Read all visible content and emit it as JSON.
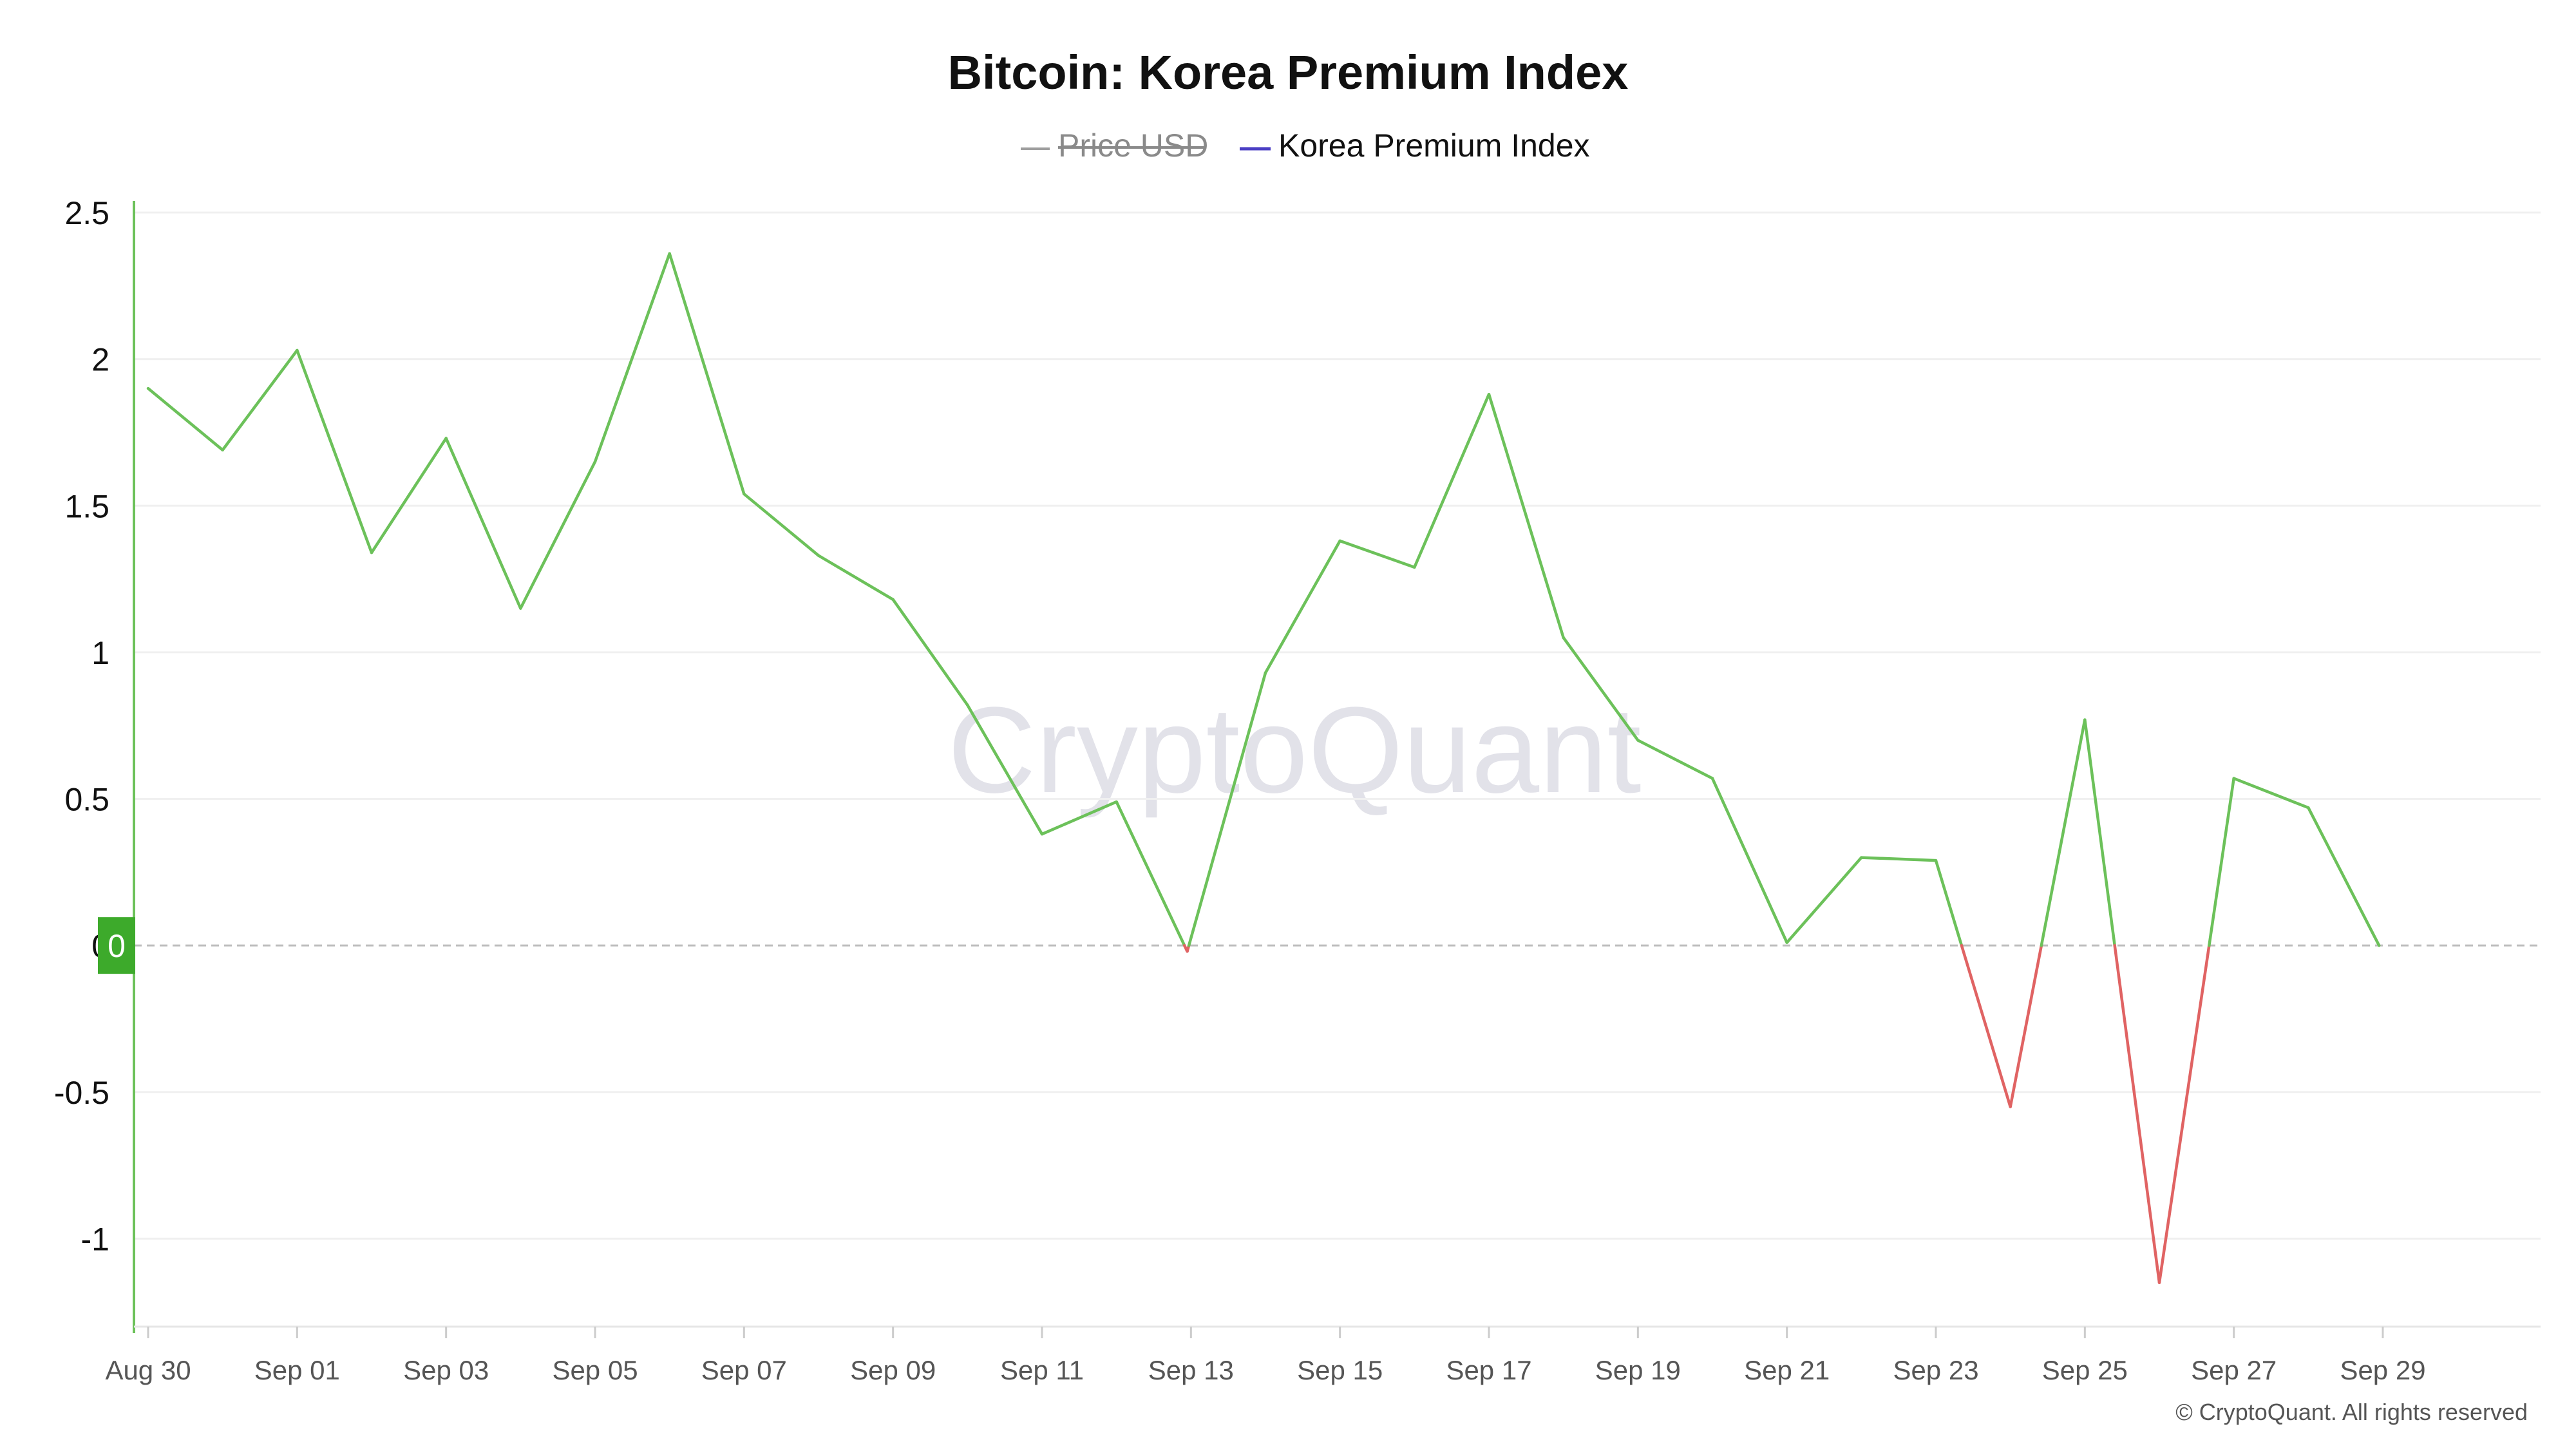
{
  "chart_data": {
    "type": "line",
    "title": "Bitcoin: Korea Premium Index",
    "legend": [
      {
        "name": "Price USD",
        "color": "#9e9e9e",
        "hidden": true
      },
      {
        "name": "Korea Premium Index",
        "color": "#4b3fc4",
        "hidden": false
      }
    ],
    "ylim": [
      -1.3,
      2.5
    ],
    "yticks": [
      2.5,
      2,
      1.5,
      1,
      0.5,
      0,
      -0.5,
      -1
    ],
    "ytick_labels": [
      "2.5",
      "2",
      "1.5",
      "1",
      "0.5",
      "0",
      "-0.5",
      "-1"
    ],
    "x_labels": [
      "Aug 30",
      "Sep 01",
      "Sep 03",
      "Sep 05",
      "Sep 07",
      "Sep 09",
      "Sep 11",
      "Sep 13",
      "Sep 15",
      "Sep 17",
      "Sep 19",
      "Sep 21",
      "Sep 23",
      "Sep 25",
      "Sep 27",
      "Sep 29"
    ],
    "x_label_day_index": [
      0,
      2,
      4,
      6,
      8,
      10,
      12,
      14,
      16,
      18,
      20,
      22,
      24,
      26,
      28,
      30
    ],
    "x_day_range": [
      0,
      32
    ],
    "series": [
      {
        "name": "Korea Premium Index",
        "positive_color": "#6cc15a",
        "negative_color": "#e06363",
        "points": [
          [
            0,
            1.9
          ],
          [
            1,
            1.69
          ],
          [
            2,
            2.03
          ],
          [
            3,
            1.34
          ],
          [
            4,
            1.73
          ],
          [
            5,
            1.15
          ],
          [
            6,
            1.65
          ],
          [
            7,
            2.36
          ],
          [
            8,
            1.54
          ],
          [
            9,
            1.33
          ],
          [
            10,
            1.18
          ],
          [
            11,
            0.82
          ],
          [
            12,
            0.38
          ],
          [
            13,
            0.49
          ],
          [
            13.95,
            -0.02
          ],
          [
            15,
            0.93
          ],
          [
            16,
            1.38
          ],
          [
            17,
            1.29
          ],
          [
            18,
            1.88
          ],
          [
            19,
            1.05
          ],
          [
            20,
            0.7
          ],
          [
            21,
            0.57
          ],
          [
            22,
            0.01
          ],
          [
            23,
            0.3
          ],
          [
            24,
            0.29
          ],
          [
            25,
            -0.55
          ],
          [
            26,
            0.77
          ],
          [
            27,
            -1.15
          ],
          [
            28,
            0.57
          ],
          [
            29,
            0.47
          ],
          [
            29.95,
            0.0
          ]
        ]
      }
    ],
    "current_value_label": "0",
    "zero_line": "dashed",
    "watermark": "CryptoQuant",
    "copyright": "© CryptoQuant. All rights reserved"
  }
}
